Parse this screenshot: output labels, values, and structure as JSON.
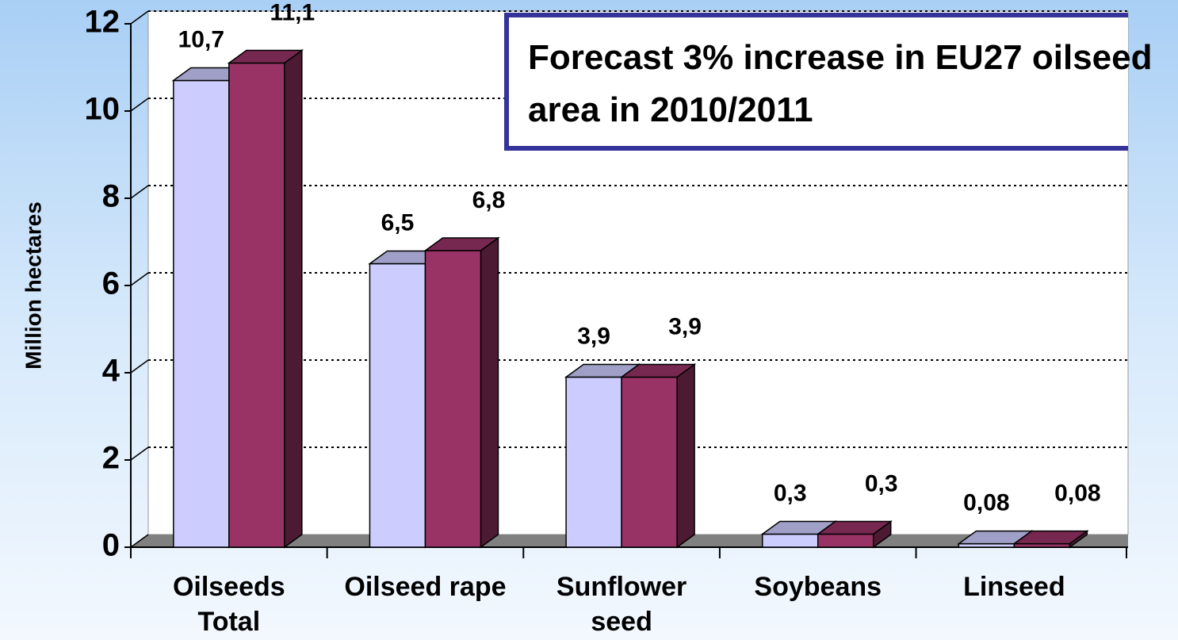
{
  "chart_data": {
    "type": "bar3d",
    "ylabel": "Million hectares",
    "annotation": "Forecast 3% increase in EU27 oilseed area in 2010/2011",
    "categories": [
      "Oilseeds Total",
      "Oilseed rape",
      "Sunflower seed",
      "Soybeans",
      "Linseed"
    ],
    "series": [
      {
        "color": "#ccccff",
        "values": [
          10.7,
          6.5,
          3.9,
          0.3,
          0.08
        ],
        "value_labels": [
          "10,7",
          "6,5",
          "3,9",
          "0,3",
          "0,08"
        ]
      },
      {
        "color": "#993366",
        "values": [
          11.1,
          6.8,
          3.9,
          0.3,
          0.08
        ],
        "value_labels": [
          "11,1",
          "6,8",
          "3,9",
          "0,3",
          "0,08"
        ]
      }
    ],
    "ylim": [
      0,
      12
    ],
    "yticks": [
      0,
      2,
      4,
      6,
      8,
      10,
      12
    ],
    "grid": true
  }
}
